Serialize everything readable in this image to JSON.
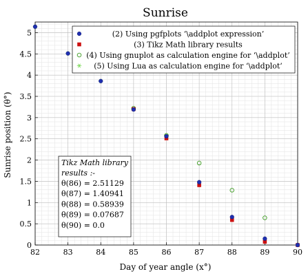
{
  "chart_data": {
    "type": "scatter",
    "title": "Sunrise",
    "xlabel": "Day of year angle (x°)",
    "ylabel": "Sunrise position (θ°)",
    "xlim": [
      82,
      90
    ],
    "ylim": [
      0,
      5.25
    ],
    "xticks": [
      "82",
      "83",
      "84",
      "85",
      "86",
      "87",
      "88",
      "89",
      "90"
    ],
    "yticks": [
      "0",
      "0.5",
      "1",
      "1.5",
      "2",
      "2.5",
      "3",
      "3.5",
      "4",
      "4.5",
      "5"
    ],
    "grid": true,
    "legend_position": "top-right",
    "series": [
      {
        "name": "(2) Using pgfplots ‘\\addplot expression’",
        "marker": "circle-filled",
        "color": "#1f2fb0",
        "x": [
          82,
          83,
          84,
          85,
          86,
          87,
          88,
          89,
          90
        ],
        "y": [
          5.14,
          4.51,
          3.86,
          3.19,
          2.56,
          1.48,
          0.66,
          0.15,
          0.0
        ]
      },
      {
        "name": "(3) Tikz Math library results",
        "marker": "square-filled",
        "color": "#cc1111",
        "x": [
          85,
          86,
          87,
          88,
          89,
          90
        ],
        "y": [
          3.2,
          2.51129,
          1.40941,
          0.58939,
          0.07687,
          0.0
        ]
      },
      {
        "name": "(4) Using gnuplot as calculation engine for ‘\\addplot’",
        "marker": "circle-open",
        "color": "#3a9a1e",
        "x": [
          85,
          86,
          87,
          88,
          89
        ],
        "y": [
          3.22,
          2.58,
          1.93,
          1.29,
          0.64
        ]
      },
      {
        "name": "(5) Using Lua as calculation engine for ‘\\addplot’",
        "marker": "star",
        "color": "#7cd95a",
        "x": [
          82,
          83,
          84,
          85,
          86
        ],
        "y": [
          5.14,
          4.51,
          3.86,
          3.2,
          2.58
        ]
      }
    ],
    "annotation": {
      "heading": [
        "Tikz Math library",
        "results :-"
      ],
      "lines": [
        "θ(86) = 2.51129",
        "θ(87) = 1.40941",
        "θ(88) = 0.58939",
        "θ(89) = 0.07687",
        "θ(90) = 0.0"
      ]
    }
  }
}
